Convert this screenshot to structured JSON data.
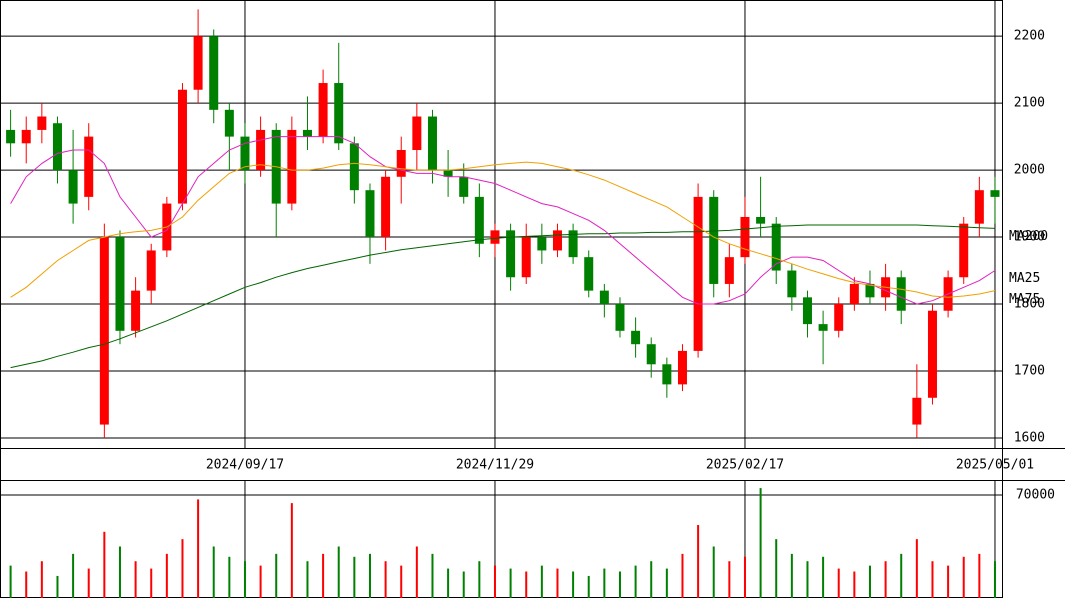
{
  "chart_data": [
    {
      "type": "candlestick",
      "categories": [
        null,
        null,
        null,
        null,
        null,
        null,
        null,
        null,
        null,
        null,
        null,
        null,
        null,
        null,
        null,
        "2024/09/17",
        null,
        null,
        null,
        null,
        null,
        null,
        null,
        null,
        null,
        null,
        null,
        null,
        null,
        null,
        null,
        "2024/11/29",
        null,
        null,
        null,
        null,
        null,
        null,
        null,
        null,
        null,
        null,
        null,
        null,
        null,
        null,
        null,
        "2025/02/17",
        null,
        null,
        null,
        null,
        null,
        null,
        null,
        null,
        null,
        null,
        null,
        null,
        null,
        null,
        null,
        "2025/05/01"
      ],
      "open": [
        2060,
        2040,
        2060,
        2070,
        2000,
        1960,
        1620,
        1900,
        1760,
        1820,
        1880,
        1950,
        2120,
        2200,
        2090,
        2050,
        2000,
        2060,
        1950,
        2060,
        2050,
        2130,
        2040,
        1970,
        1900,
        1990,
        2030,
        2080,
        2000,
        1990,
        1960,
        1890,
        1910,
        1840,
        1900,
        1880,
        1910,
        1870,
        1820,
        1800,
        1760,
        1740,
        1710,
        1680,
        1730,
        1960,
        1830,
        1870,
        1930,
        1920,
        1850,
        1810,
        1770,
        1760,
        1800,
        1830,
        1810,
        1840,
        1620,
        1660,
        1790,
        1840,
        1920,
        1970
      ],
      "high": [
        2090,
        2080,
        2100,
        2080,
        2060,
        2070,
        1920,
        1910,
        1840,
        1890,
        1960,
        2130,
        2240,
        2210,
        2100,
        2070,
        2080,
        2070,
        2080,
        2110,
        2150,
        2190,
        2050,
        1980,
        2000,
        2050,
        2100,
        2090,
        2030,
        2010,
        1980,
        1920,
        1920,
        1920,
        1920,
        1920,
        1920,
        1880,
        1830,
        1810,
        1780,
        1750,
        1720,
        1740,
        1980,
        1970,
        1890,
        1960,
        1990,
        1930,
        1860,
        1820,
        1790,
        1810,
        1840,
        1850,
        1860,
        1850,
        1710,
        1800,
        1850,
        1930,
        1990,
        1990
      ],
      "low": [
        2020,
        2010,
        2040,
        1980,
        1920,
        1940,
        1600,
        1740,
        1750,
        1800,
        1870,
        1940,
        2100,
        2070,
        2000,
        1980,
        1990,
        1900,
        1940,
        2030,
        2040,
        2030,
        1950,
        1860,
        1880,
        1950,
        2000,
        1980,
        1960,
        1950,
        1870,
        1870,
        1820,
        1830,
        1860,
        1870,
        1860,
        1810,
        1780,
        1750,
        1720,
        1690,
        1660,
        1670,
        1720,
        1810,
        1810,
        1860,
        1900,
        1830,
        1790,
        1750,
        1710,
        1750,
        1790,
        1800,
        1790,
        1770,
        1600,
        1650,
        1780,
        1830,
        1900,
        1920
      ],
      "close": [
        2040,
        2060,
        2080,
        2000,
        1950,
        2050,
        1900,
        1760,
        1820,
        1880,
        1950,
        2120,
        2200,
        2090,
        2050,
        2000,
        2060,
        1950,
        2060,
        2050,
        2130,
        2040,
        1970,
        1900,
        1990,
        2030,
        2080,
        2000,
        1990,
        1960,
        1890,
        1910,
        1840,
        1900,
        1880,
        1910,
        1870,
        1820,
        1800,
        1760,
        1740,
        1710,
        1680,
        1730,
        1960,
        1830,
        1870,
        1930,
        1920,
        1850,
        1810,
        1770,
        1760,
        1800,
        1830,
        1810,
        1840,
        1790,
        1660,
        1790,
        1840,
        1920,
        1970,
        1960
      ],
      "up_color": "#ff0000",
      "down_color": "#008000",
      "series": [
        {
          "name": "MA200",
          "color": "#006400",
          "values": [
            1705,
            1710,
            1715,
            1722,
            1728,
            1735,
            1740,
            1748,
            1757,
            1766,
            1775,
            1785,
            1795,
            1805,
            1815,
            1825,
            1832,
            1840,
            1847,
            1853,
            1858,
            1863,
            1868,
            1873,
            1877,
            1881,
            1884,
            1887,
            1890,
            1893,
            1896,
            1898,
            1900,
            1901,
            1902,
            1903,
            1904,
            1905,
            1905,
            1906,
            1906,
            1907,
            1907,
            1908,
            1908,
            1909,
            1910,
            1912,
            1914,
            1916,
            1917,
            1918,
            1918,
            1918,
            1918,
            1918,
            1918,
            1918,
            1918,
            1917,
            1916,
            1915,
            1914,
            1913
          ]
        },
        {
          "name": "MA25",
          "color": "#e020c0",
          "values": [
            1950,
            1990,
            2010,
            2025,
            2030,
            2030,
            2010,
            1960,
            1930,
            1900,
            1910,
            1950,
            1990,
            2010,
            2030,
            2040,
            2045,
            2050,
            2050,
            2050,
            2050,
            2050,
            2040,
            2020,
            2005,
            2000,
            1995,
            1995,
            1990,
            1990,
            1985,
            1980,
            1970,
            1960,
            1950,
            1945,
            1935,
            1925,
            1910,
            1890,
            1870,
            1850,
            1830,
            1810,
            1800,
            1800,
            1805,
            1815,
            1840,
            1860,
            1870,
            1870,
            1865,
            1850,
            1835,
            1830,
            1820,
            1810,
            1800,
            1805,
            1815,
            1825,
            1835,
            1850
          ]
        },
        {
          "name": "MA75",
          "color": "#f0a000",
          "values": [
            1810,
            1825,
            1845,
            1865,
            1880,
            1895,
            1900,
            1905,
            1908,
            1910,
            1915,
            1930,
            1955,
            1975,
            1995,
            2005,
            2008,
            2005,
            2000,
            2000,
            2003,
            2008,
            2010,
            2008,
            2005,
            2002,
            2000,
            2000,
            2000,
            2002,
            2005,
            2008,
            2010,
            2012,
            2010,
            2005,
            2000,
            1993,
            1985,
            1975,
            1965,
            1955,
            1945,
            1930,
            1915,
            1900,
            1890,
            1882,
            1875,
            1868,
            1860,
            1852,
            1845,
            1838,
            1832,
            1828,
            1825,
            1822,
            1818,
            1812,
            1810,
            1812,
            1815,
            1820
          ]
        }
      ],
      "ylim": [
        1585,
        2254
      ],
      "yticks": [
        1600,
        1700,
        1800,
        1900,
        2000,
        2100,
        2200
      ],
      "grid": true
    },
    {
      "type": "bar",
      "values": [
        22000,
        18000,
        25000,
        15000,
        30000,
        20000,
        45000,
        35000,
        25000,
        20000,
        30000,
        40000,
        67000,
        35000,
        28000,
        25000,
        22000,
        30000,
        64500,
        25000,
        30000,
        35000,
        28000,
        30000,
        25000,
        22000,
        35000,
        30000,
        20000,
        18000,
        25000,
        22000,
        20000,
        18000,
        22000,
        20000,
        18000,
        15000,
        20000,
        18000,
        22000,
        25000,
        20000,
        30000,
        49600,
        35000,
        25000,
        28000,
        74700,
        40000,
        30000,
        25000,
        28000,
        20000,
        18000,
        22000,
        25000,
        30000,
        40000,
        25000,
        22000,
        28000,
        30000,
        25000
      ],
      "ylim": [
        0,
        80200
      ],
      "yticks": [
        70000
      ],
      "grid": true
    }
  ]
}
